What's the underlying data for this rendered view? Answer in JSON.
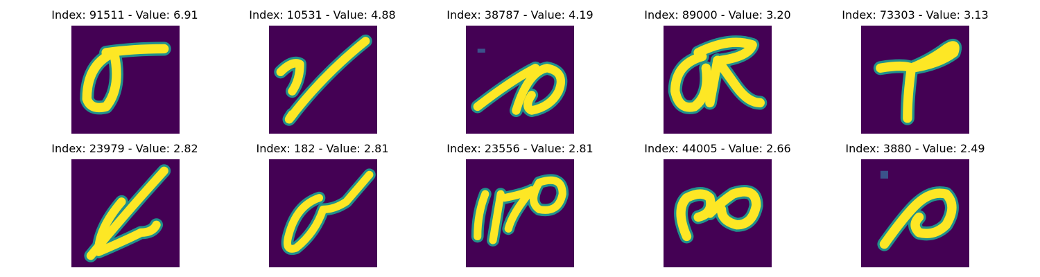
{
  "panels": [
    {
      "title": "Index: 91511 - Value: 6.91",
      "glyph": "sigma-like stroke"
    },
    {
      "title": "Index: 10531 - Value: 4.88",
      "glyph": "y-like stroke"
    },
    {
      "title": "Index: 38787 - Value: 4.19",
      "glyph": "hook stroke"
    },
    {
      "title": "Index: 89000 - Value: 3.20",
      "glyph": "loop with crossbar"
    },
    {
      "title": "Index: 73303 - Value: 3.13",
      "glyph": "y branch"
    },
    {
      "title": "Index: 23979 - Value: 2.82",
      "glyph": "slanted loop"
    },
    {
      "title": "Index: 182 - Value: 2.81",
      "glyph": "slanted loop with tail"
    },
    {
      "title": "Index: 23556 - Value: 2.81",
      "glyph": "170-like marks"
    },
    {
      "title": "Index: 44005 - Value: 2.66",
      "glyph": "double loop"
    },
    {
      "title": "Index: 3880 - Value: 2.49",
      "glyph": "hook loop"
    }
  ],
  "colors": {
    "background": "#440154",
    "stroke": "#fde725",
    "edge": "#21918c",
    "page": "#ffffff"
  }
}
